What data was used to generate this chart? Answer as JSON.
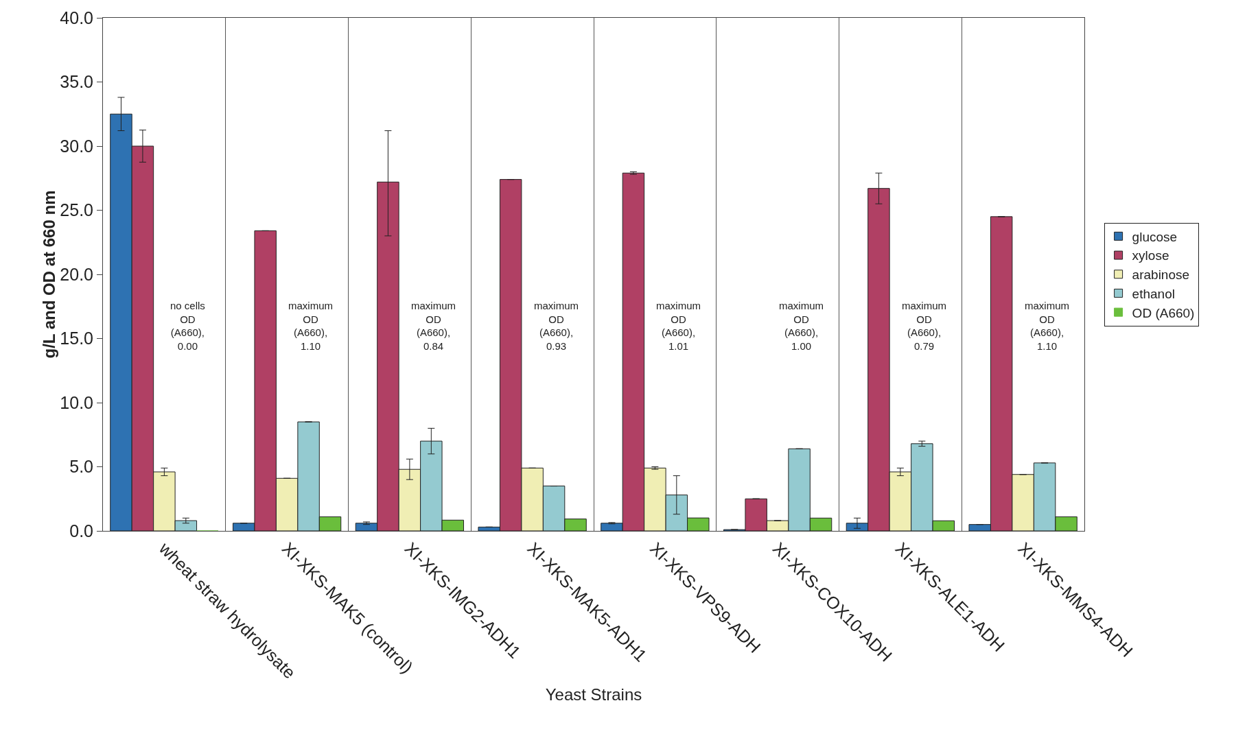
{
  "chart_data": {
    "type": "bar",
    "xlabel": "Yeast Strains",
    "ylabel": "g/L and OD at 660 nm",
    "categories": [
      "wheat straw hydrolysate",
      "XI-XKS-MAK5 (control)",
      "XI-XKS-IMG2-ADH1",
      "XI-XKS-MAK5-ADH1",
      "XI-XKS-VPS9-ADH",
      "XI-XKS-COX10-ADH",
      "XI-XKS-ALE1-ADH",
      "XI-XKS-MMS4-ADH"
    ],
    "series": [
      {
        "name": "glucose",
        "color": "#2e72b2",
        "values": [
          32.5,
          0.6,
          0.6,
          0.3,
          0.6,
          0.1,
          0.6,
          0.5
        ],
        "errors": [
          1.3,
          null,
          0.1,
          null,
          0.05,
          null,
          0.4,
          null
        ]
      },
      {
        "name": "xylose",
        "color": "#b04064",
        "values": [
          30.0,
          23.4,
          27.2,
          27.4,
          27.9,
          2.5,
          26.7,
          24.5
        ],
        "errors": [
          1.25,
          null,
          [
            23.0,
            31.2
          ],
          null,
          0.1,
          null,
          1.2,
          null
        ]
      },
      {
        "name": "arabinose",
        "color": "#f0eeb4",
        "values": [
          4.6,
          4.1,
          4.8,
          4.9,
          4.9,
          0.8,
          4.6,
          4.4
        ],
        "errors": [
          0.3,
          null,
          0.8,
          null,
          0.1,
          null,
          0.3,
          null
        ]
      },
      {
        "name": "ethanol",
        "color": "#94cad0",
        "values": [
          0.8,
          8.5,
          7.0,
          3.5,
          2.8,
          6.4,
          6.8,
          5.3
        ],
        "errors": [
          0.2,
          null,
          1.0,
          null,
          1.5,
          null,
          0.2,
          null
        ]
      },
      {
        "name": "OD (A660)",
        "color": "#6abe3c",
        "values": [
          0.0,
          1.1,
          0.84,
          0.93,
          1.01,
          1.0,
          0.79,
          1.1
        ]
      }
    ],
    "ylim": [
      0,
      40
    ],
    "yticks": [
      {
        "value": 0,
        "label": "0.0"
      },
      {
        "value": 5,
        "label": "5.0"
      },
      {
        "value": 10,
        "label": "10.0"
      },
      {
        "value": 15,
        "label": "15.0"
      },
      {
        "value": 20,
        "label": "20.0"
      },
      {
        "value": 25,
        "label": "25.0"
      },
      {
        "value": 30,
        "label": "30.0"
      },
      {
        "value": 35,
        "label": "35.0"
      },
      {
        "value": 40,
        "label": "40.0"
      }
    ],
    "grid": "x",
    "legend": "right",
    "annotations": [
      "no cells\nOD\n(A660),\n0.00",
      "maximum\nOD\n(A660),\n1.10",
      "maximum\nOD\n(A660),\n0.84",
      "maximum\nOD\n(A660),\n0.93",
      "maximum\nOD\n(A660),\n1.01",
      "maximum\nOD\n(A660),\n1.00",
      "maximum\nOD\n(A660),\n0.79",
      "maximum\nOD\n(A660),\n1.10"
    ]
  }
}
